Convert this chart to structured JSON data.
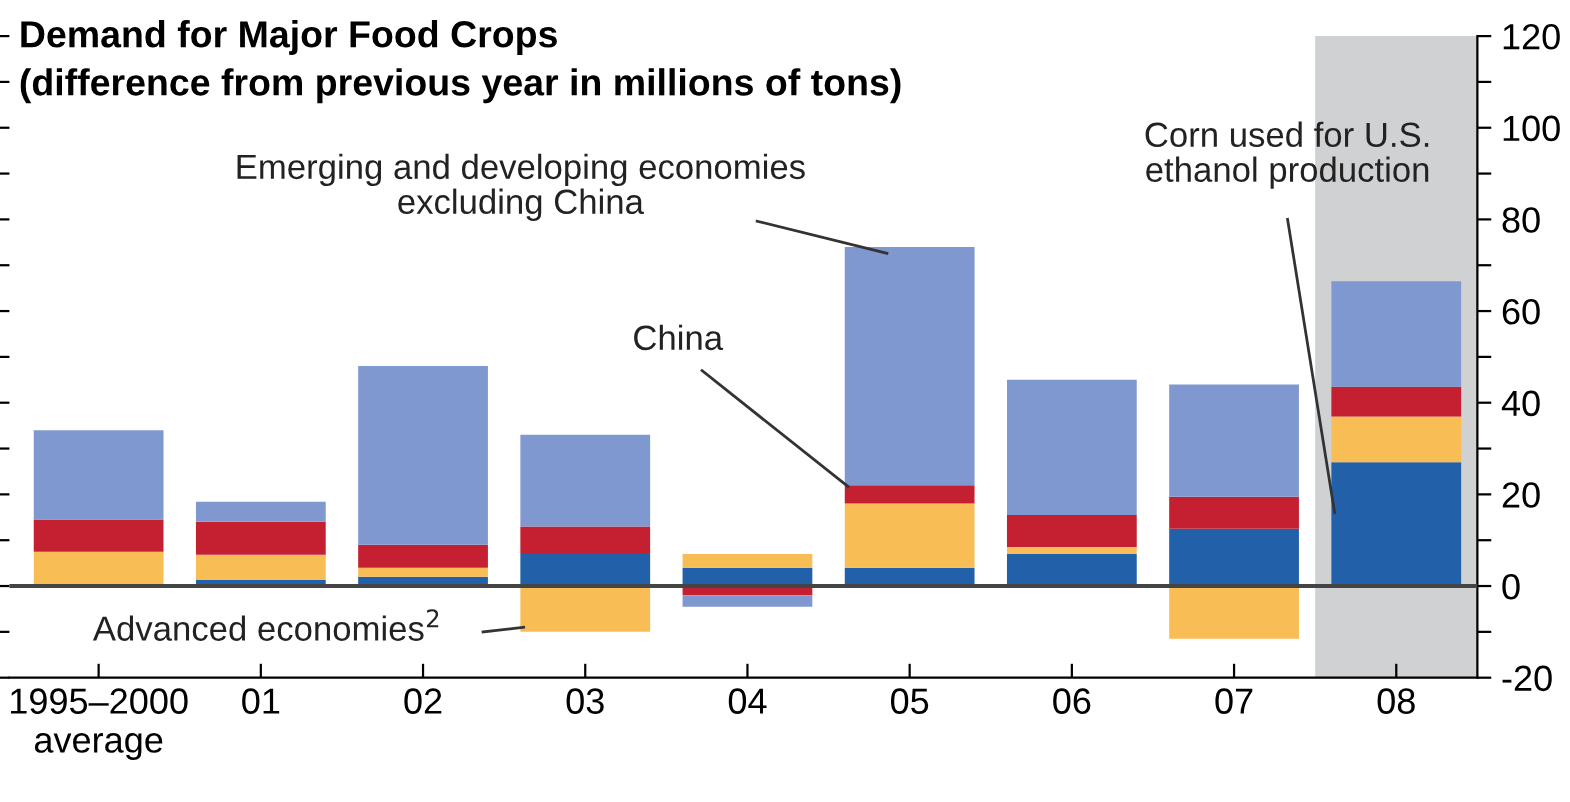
{
  "chart_data": {
    "type": "bar",
    "stacked": true,
    "title": "Demand for Major Food Crops",
    "subtitle": "(difference from previous year in millions of tons)",
    "categories": [
      "1995–2000\naverage",
      "01",
      "02",
      "03",
      "04",
      "05",
      "06",
      "07",
      "08"
    ],
    "series": [
      {
        "name": "Corn used for U.S.\nethanol production",
        "color": "#2260aa",
        "values": [
          0,
          1.3,
          2,
          7,
          4,
          4,
          7,
          12.5,
          27
        ]
      },
      {
        "name": "Advanced economies$^{2}$",
        "color": "#f8bd55",
        "values": [
          7.5,
          5.5,
          2,
          -10,
          3,
          14,
          1.5,
          -11.5,
          10
        ]
      },
      {
        "name": "China",
        "color": "#c42032",
        "values": [
          7,
          7.2,
          5,
          6,
          -2,
          4,
          7,
          7,
          6.5
        ]
      },
      {
        "name": "Emerging and developing economies\nexcluding China",
        "color": "#7f98d0",
        "values": [
          19.5,
          4.4,
          39,
          20,
          -2.5,
          52,
          29.5,
          24.5,
          23
        ]
      }
    ],
    "ylim": [
      -20,
      120
    ],
    "yticks": [
      -20,
      {
        "value": -10,
        "label": null
      },
      0,
      {
        "value": 10,
        "label": null
      },
      20,
      {
        "value": 30,
        "label": null
      },
      40,
      {
        "value": 50,
        "label": null
      },
      60,
      {
        "value": 70,
        "label": null
      },
      80,
      {
        "value": 90,
        "label": null
      },
      100,
      {
        "value": 110,
        "label": null
      },
      120
    ],
    "bands": [
      {
        "axis": "x",
        "from": "08",
        "to": "08",
        "color": "#d0d1d3"
      }
    ],
    "ref_lines": [
      {
        "axis": "y",
        "value": 0,
        "color": "#444444"
      }
    ],
    "grid": false,
    "legend": false
  }
}
